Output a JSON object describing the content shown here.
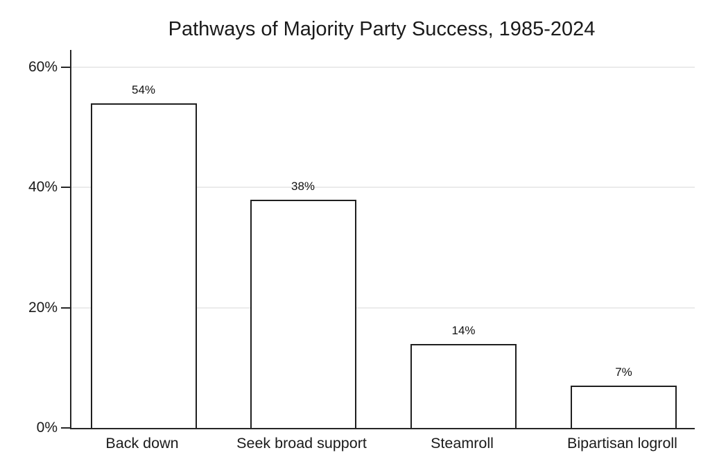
{
  "chart_data": {
    "type": "bar",
    "title": "Pathways of Majority Party Success, 1985-2024",
    "categories": [
      "Back down",
      "Seek broad support",
      "Steamroll",
      "Bipartisan logroll"
    ],
    "values": [
      54,
      38,
      14,
      7
    ],
    "value_labels": [
      "54%",
      "38%",
      "14%",
      "7%"
    ],
    "xlabel": "",
    "ylabel": "",
    "yticks": [
      0,
      20,
      40,
      60
    ],
    "ytick_labels": [
      "0%",
      "20%",
      "40%",
      "60%"
    ],
    "ylim": [
      0,
      62.9
    ],
    "grid": "horizontal-light",
    "legend": "none",
    "colors": {
      "background": "#ffffff",
      "bar_fill": "#ffffff",
      "bar_stroke": "#1f1f1f",
      "axis": "#262626",
      "gridline": "#ebebeb",
      "text": "#1a1a1a"
    }
  }
}
